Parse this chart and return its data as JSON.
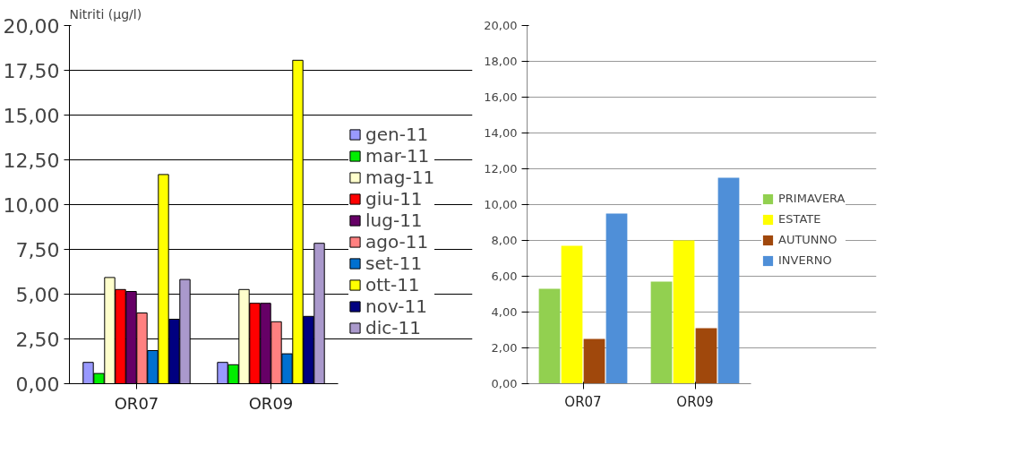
{
  "chart_data": [
    {
      "type": "bar",
      "title": "Nitriti (µg/l)",
      "categories": [
        "OR07",
        "OR09"
      ],
      "series": [
        {
          "name": "gen-11",
          "color": "#9999ff",
          "values": [
            1.19,
            1.19
          ]
        },
        {
          "name": "mar-11",
          "color": "#00ee00",
          "values": [
            0.57,
            1.06
          ]
        },
        {
          "name": "mag-11",
          "color": "#ffffcc",
          "values": [
            5.93,
            5.26
          ]
        },
        {
          "name": "giu-11",
          "color": "#ff0000",
          "values": [
            5.26,
            4.49
          ]
        },
        {
          "name": "lug-11",
          "color": "#660066",
          "values": [
            5.15,
            4.49
          ]
        },
        {
          "name": "ago-11",
          "color": "#ff8080",
          "values": [
            3.95,
            3.46
          ]
        },
        {
          "name": "set-11",
          "color": "#0070d0",
          "values": [
            1.85,
            1.67
          ]
        },
        {
          "name": "ott-11",
          "color": "#ffff00",
          "values": [
            11.68,
            18.06
          ]
        },
        {
          "name": "nov-11",
          "color": "#000080",
          "values": [
            3.6,
            3.76
          ]
        },
        {
          "name": "dic-11",
          "color": "#aa99cc",
          "values": [
            5.82,
            7.84
          ]
        }
      ],
      "ylim": [
        0,
        20
      ],
      "yticks": [
        {
          "value": 0,
          "label": "0,00"
        },
        {
          "value": 2.5,
          "label": "2,50"
        },
        {
          "value": 5,
          "label": "5,00"
        },
        {
          "value": 7.5,
          "label": "7,50"
        },
        {
          "value": 10,
          "label": "10,00"
        },
        {
          "value": 12.5,
          "label": "12,50"
        },
        {
          "value": 15,
          "label": "15,00"
        },
        {
          "value": 17.5,
          "label": "17,50"
        },
        {
          "value": 20,
          "label": "20,00"
        }
      ],
      "grid": "y",
      "legend": "right"
    },
    {
      "type": "bar",
      "categories": [
        "OR07",
        "OR09"
      ],
      "series": [
        {
          "name": "PRIMAVERA",
          "color": "#92d050",
          "values": [
            5.3,
            5.7
          ]
        },
        {
          "name": "ESTATE",
          "color": "#ffff00",
          "values": [
            7.7,
            8.0
          ]
        },
        {
          "name": "AUTUNNO",
          "color": "#a0480c",
          "values": [
            2.5,
            3.1
          ]
        },
        {
          "name": "INVERNO",
          "color": "#4f8fd8",
          "values": [
            9.5,
            11.5
          ]
        }
      ],
      "ylim": [
        0,
        20
      ],
      "yticks": [
        {
          "value": 0,
          "label": "0,00"
        },
        {
          "value": 2,
          "label": "2,00"
        },
        {
          "value": 4,
          "label": "4,00"
        },
        {
          "value": 6,
          "label": "6,00"
        },
        {
          "value": 8,
          "label": "8,00"
        },
        {
          "value": 10,
          "label": "10,00"
        },
        {
          "value": 12,
          "label": "12,00"
        },
        {
          "value": 14,
          "label": "14,00"
        },
        {
          "value": 16,
          "label": "16,00"
        },
        {
          "value": 18,
          "label": "18,00"
        },
        {
          "value": 20,
          "label": "20,00"
        }
      ],
      "grid": "y",
      "legend": "right"
    }
  ]
}
